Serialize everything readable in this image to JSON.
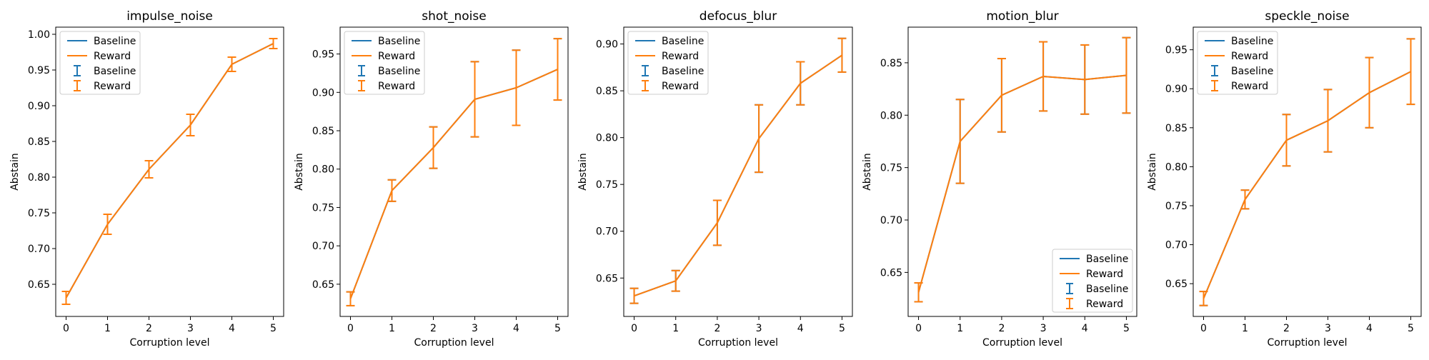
{
  "colors": {
    "baseline": "#1f77b4",
    "reward": "#ff7f0e",
    "axis": "#000000",
    "legend_border": "#cccccc"
  },
  "chart_data": [
    {
      "type": "line",
      "title": "impulse_noise",
      "xlabel": "Corruption level",
      "ylabel": "Abstain",
      "x": [
        0,
        1,
        2,
        3,
        4,
        5
      ],
      "xlim": [
        -0.25,
        5.25
      ],
      "ylim": [
        0.605,
        1.01
      ],
      "yticks": [
        0.65,
        0.7,
        0.75,
        0.8,
        0.85,
        0.9,
        0.95,
        1.0
      ],
      "ytick_labels": [
        "0.65",
        "0.70",
        "0.75",
        "0.80",
        "0.85",
        "0.90",
        "0.95",
        "1.00"
      ],
      "legend_position": "upper-left",
      "legend_entries": [
        {
          "label": "Baseline",
          "kind": "line",
          "color_key": "baseline"
        },
        {
          "label": "Reward",
          "kind": "line",
          "color_key": "reward"
        },
        {
          "label": "Baseline",
          "kind": "errorbar",
          "color_key": "baseline"
        },
        {
          "label": "Reward",
          "kind": "errorbar",
          "color_key": "reward"
        }
      ],
      "series": [
        {
          "name": "Baseline",
          "color_key": "baseline",
          "values": [
            0.631,
            0.734,
            0.811,
            0.873,
            0.958,
            0.987
          ],
          "errors": [
            0.009,
            0.014,
            0.012,
            0.015,
            0.01,
            0.007
          ]
        },
        {
          "name": "Reward",
          "color_key": "reward",
          "values": [
            0.631,
            0.734,
            0.811,
            0.873,
            0.958,
            0.987
          ],
          "errors": [
            0.009,
            0.014,
            0.012,
            0.015,
            0.01,
            0.007
          ]
        }
      ]
    },
    {
      "type": "line",
      "title": "shot_noise",
      "xlabel": "Corruption level",
      "ylabel": "Abstain",
      "x": [
        0,
        1,
        2,
        3,
        4,
        5
      ],
      "xlim": [
        -0.25,
        5.25
      ],
      "ylim": [
        0.608,
        0.985
      ],
      "yticks": [
        0.65,
        0.7,
        0.75,
        0.8,
        0.85,
        0.9,
        0.95
      ],
      "ytick_labels": [
        "0.65",
        "0.70",
        "0.75",
        "0.80",
        "0.85",
        "0.90",
        "0.95"
      ],
      "legend_position": "upper-left",
      "legend_entries": [
        {
          "label": "Baseline",
          "kind": "line",
          "color_key": "baseline"
        },
        {
          "label": "Reward",
          "kind": "line",
          "color_key": "reward"
        },
        {
          "label": "Baseline",
          "kind": "errorbar",
          "color_key": "baseline"
        },
        {
          "label": "Reward",
          "kind": "errorbar",
          "color_key": "reward"
        }
      ],
      "series": [
        {
          "name": "Baseline",
          "color_key": "baseline",
          "values": [
            0.631,
            0.772,
            0.828,
            0.891,
            0.906,
            0.93
          ],
          "errors": [
            0.009,
            0.014,
            0.027,
            0.049,
            0.049,
            0.04
          ]
        },
        {
          "name": "Reward",
          "color_key": "reward",
          "values": [
            0.631,
            0.772,
            0.828,
            0.891,
            0.906,
            0.93
          ],
          "errors": [
            0.009,
            0.014,
            0.027,
            0.049,
            0.049,
            0.04
          ]
        }
      ]
    },
    {
      "type": "line",
      "title": "defocus_blur",
      "xlabel": "Corruption level",
      "ylabel": "Abstain",
      "x": [
        0,
        1,
        2,
        3,
        4,
        5
      ],
      "xlim": [
        -0.25,
        5.25
      ],
      "ylim": [
        0.609,
        0.918
      ],
      "yticks": [
        0.65,
        0.7,
        0.75,
        0.8,
        0.85,
        0.9
      ],
      "ytick_labels": [
        "0.65",
        "0.70",
        "0.75",
        "0.80",
        "0.85",
        "0.90"
      ],
      "legend_position": "upper-left",
      "legend_entries": [
        {
          "label": "Baseline",
          "kind": "line",
          "color_key": "baseline"
        },
        {
          "label": "Reward",
          "kind": "line",
          "color_key": "reward"
        },
        {
          "label": "Baseline",
          "kind": "errorbar",
          "color_key": "baseline"
        },
        {
          "label": "Reward",
          "kind": "errorbar",
          "color_key": "reward"
        }
      ],
      "series": [
        {
          "name": "Baseline",
          "color_key": "baseline",
          "values": [
            0.631,
            0.647,
            0.709,
            0.799,
            0.858,
            0.888
          ],
          "errors": [
            0.008,
            0.011,
            0.024,
            0.036,
            0.023,
            0.018
          ]
        },
        {
          "name": "Reward",
          "color_key": "reward",
          "values": [
            0.631,
            0.647,
            0.709,
            0.799,
            0.858,
            0.888
          ],
          "errors": [
            0.008,
            0.011,
            0.024,
            0.036,
            0.023,
            0.018
          ]
        }
      ]
    },
    {
      "type": "line",
      "title": "motion_blur",
      "xlabel": "Corruption level",
      "ylabel": "Abstain",
      "x": [
        0,
        1,
        2,
        3,
        4,
        5
      ],
      "xlim": [
        -0.25,
        5.25
      ],
      "ylim": [
        0.608,
        0.884
      ],
      "yticks": [
        0.65,
        0.7,
        0.75,
        0.8,
        0.85
      ],
      "ytick_labels": [
        "0.65",
        "0.70",
        "0.75",
        "0.80",
        "0.85"
      ],
      "legend_position": "lower-right",
      "legend_entries": [
        {
          "label": "Baseline",
          "kind": "line",
          "color_key": "baseline"
        },
        {
          "label": "Reward",
          "kind": "line",
          "color_key": "reward"
        },
        {
          "label": "Baseline",
          "kind": "errorbar",
          "color_key": "baseline"
        },
        {
          "label": "Reward",
          "kind": "errorbar",
          "color_key": "reward"
        }
      ],
      "series": [
        {
          "name": "Baseline",
          "color_key": "baseline",
          "values": [
            0.631,
            0.775,
            0.819,
            0.837,
            0.834,
            0.838
          ],
          "errors": [
            0.009,
            0.04,
            0.035,
            0.033,
            0.033,
            0.036
          ]
        },
        {
          "name": "Reward",
          "color_key": "reward",
          "values": [
            0.631,
            0.775,
            0.819,
            0.837,
            0.834,
            0.838
          ],
          "errors": [
            0.009,
            0.04,
            0.035,
            0.033,
            0.033,
            0.036
          ]
        }
      ]
    },
    {
      "type": "line",
      "title": "speckle_noise",
      "xlabel": "Corruption level",
      "ylabel": "Abstain",
      "x": [
        0,
        1,
        2,
        3,
        4,
        5
      ],
      "xlim": [
        -0.25,
        5.25
      ],
      "ylim": [
        0.608,
        0.979
      ],
      "yticks": [
        0.65,
        0.7,
        0.75,
        0.8,
        0.85,
        0.9,
        0.95
      ],
      "ytick_labels": [
        "0.65",
        "0.70",
        "0.75",
        "0.80",
        "0.85",
        "0.90",
        "0.95"
      ],
      "legend_position": "upper-left",
      "legend_entries": [
        {
          "label": "Baseline",
          "kind": "line",
          "color_key": "baseline"
        },
        {
          "label": "Reward",
          "kind": "line",
          "color_key": "reward"
        },
        {
          "label": "Baseline",
          "kind": "errorbar",
          "color_key": "baseline"
        },
        {
          "label": "Reward",
          "kind": "errorbar",
          "color_key": "reward"
        }
      ],
      "series": [
        {
          "name": "Baseline",
          "color_key": "baseline",
          "values": [
            0.631,
            0.758,
            0.834,
            0.859,
            0.895,
            0.922
          ],
          "errors": [
            0.009,
            0.012,
            0.033,
            0.04,
            0.045,
            0.042
          ]
        },
        {
          "name": "Reward",
          "color_key": "reward",
          "values": [
            0.631,
            0.758,
            0.834,
            0.859,
            0.895,
            0.922
          ],
          "errors": [
            0.009,
            0.012,
            0.033,
            0.04,
            0.045,
            0.042
          ]
        }
      ]
    }
  ]
}
